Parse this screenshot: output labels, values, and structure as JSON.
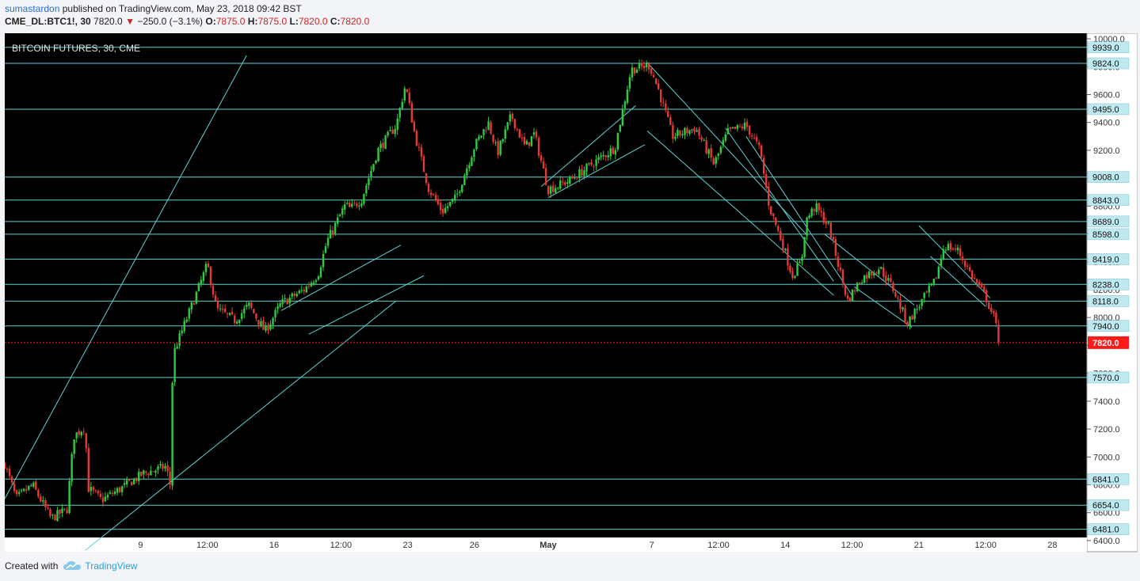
{
  "header": {
    "author": "sumastardon",
    "published_text": "published on TradingView.com, May 23, 2018 09:42 BST",
    "symbol": "CME_DL:BTC1!, 30",
    "last": "7820.0",
    "change": "−250.0 (−3.1%)",
    "open_label": "O:",
    "open": "7875.0",
    "high_label": "H:",
    "high": "7875.0",
    "low_label": "L:",
    "low": "7820.0",
    "close_label": "C:",
    "close": "7820.0"
  },
  "footer": {
    "created_with": "Created with",
    "brand": "TradingView"
  },
  "colors": {
    "background": "#000000",
    "levels": "#5fd3d3",
    "up": "#2ecc40",
    "down": "#e53935",
    "price_tag": "#ff1a1a",
    "level_tag": "#bfe9f0"
  },
  "chart_data": {
    "type": "candlestick",
    "title": "BITCOIN FUTURES, 30, CME",
    "ylim": [
      6320,
      10040
    ],
    "y_ticks": [
      6400,
      6600,
      6800,
      7000,
      7200,
      7400,
      7600,
      7800,
      8000,
      8200,
      8400,
      8600,
      8800,
      9000,
      9200,
      9400,
      9600,
      9800,
      10000
    ],
    "y_tick_labels": [
      "6400.0",
      "6600.0",
      "6800.0",
      "7000.0",
      "7200.0",
      "7400.0",
      "7600.0",
      "7800.0",
      "8000.0",
      "8200.0",
      "8400.0",
      "8600.0",
      "8800.0",
      "9000.0",
      "9200.0",
      "9400.0",
      "9600.0",
      "9800.0",
      "10000.0"
    ],
    "x_ticks": [
      {
        "label": "9",
        "t": 0.59
      },
      {
        "label": "12:00",
        "t": 0.88
      },
      {
        "label": "16",
        "t": 1.17
      },
      {
        "label": "12:00",
        "t": 1.46
      },
      {
        "label": "23",
        "t": 1.75
      },
      {
        "label": "26",
        "t": 2.04
      },
      {
        "label": "May",
        "t": 2.36
      },
      {
        "label": "7",
        "t": 2.81
      },
      {
        "label": "12:00",
        "t": 3.1
      },
      {
        "label": "14",
        "t": 3.39
      },
      {
        "label": "12:00",
        "t": 3.68
      },
      {
        "label": "21",
        "t": 3.97
      },
      {
        "label": "12:00",
        "t": 4.26
      },
      {
        "label": "28",
        "t": 4.55
      }
    ],
    "levels": [
      9939.0,
      9824.0,
      9495.0,
      9008.0,
      8843.0,
      8689.0,
      8598.0,
      8419.0,
      8238.0,
      8118.0,
      7940.0,
      7570.0,
      6841.0,
      6654.0,
      6481.0
    ],
    "level_labels": [
      "9939.0",
      "9824.0",
      "9495.0",
      "9008.0",
      "8843.0",
      "8689.0",
      "8598.0",
      "8419.0",
      "8238.0",
      "8118.0",
      "7940.0",
      "7570.0",
      "6841.0",
      "6654.0",
      "6481.0"
    ],
    "last_price": 7820.0,
    "last_price_label": "7820.0",
    "path": [
      [
        0.0,
        6950
      ],
      [
        0.05,
        6700
      ],
      [
        0.12,
        6800
      ],
      [
        0.2,
        6560
      ],
      [
        0.27,
        6620
      ],
      [
        0.3,
        7150
      ],
      [
        0.35,
        7220
      ],
      [
        0.36,
        6780
      ],
      [
        0.42,
        6690
      ],
      [
        0.52,
        6790
      ],
      [
        0.6,
        6880
      ],
      [
        0.7,
        6930
      ],
      [
        0.72,
        6790
      ],
      [
        0.73,
        7730
      ],
      [
        0.78,
        7950
      ],
      [
        0.82,
        8120
      ],
      [
        0.88,
        8380
      ],
      [
        0.92,
        8060
      ],
      [
        1.0,
        7980
      ],
      [
        1.06,
        8090
      ],
      [
        1.13,
        7900
      ],
      [
        1.2,
        8100
      ],
      [
        1.3,
        8200
      ],
      [
        1.36,
        8310
      ],
      [
        1.4,
        8550
      ],
      [
        1.48,
        8810
      ],
      [
        1.5,
        8780
      ],
      [
        1.55,
        8850
      ],
      [
        1.62,
        9200
      ],
      [
        1.7,
        9380
      ],
      [
        1.74,
        9670
      ],
      [
        1.78,
        9320
      ],
      [
        1.84,
        8930
      ],
      [
        1.9,
        8760
      ],
      [
        1.96,
        8860
      ],
      [
        2.04,
        9230
      ],
      [
        2.1,
        9400
      ],
      [
        2.14,
        9180
      ],
      [
        2.2,
        9450
      ],
      [
        2.26,
        9220
      ],
      [
        2.3,
        9320
      ],
      [
        2.36,
        8920
      ],
      [
        2.45,
        8980
      ],
      [
        2.55,
        9100
      ],
      [
        2.65,
        9220
      ],
      [
        2.72,
        9780
      ],
      [
        2.8,
        9810
      ],
      [
        2.84,
        9630
      ],
      [
        2.9,
        9300
      ],
      [
        3.0,
        9360
      ],
      [
        3.08,
        9100
      ],
      [
        3.14,
        9330
      ],
      [
        3.22,
        9380
      ],
      [
        3.28,
        9200
      ],
      [
        3.32,
        8800
      ],
      [
        3.38,
        8520
      ],
      [
        3.42,
        8300
      ],
      [
        3.46,
        8400
      ],
      [
        3.48,
        8700
      ],
      [
        3.52,
        8800
      ],
      [
        3.58,
        8650
      ],
      [
        3.62,
        8380
      ],
      [
        3.66,
        8120
      ],
      [
        3.72,
        8280
      ],
      [
        3.8,
        8360
      ],
      [
        3.86,
        8200
      ],
      [
        3.92,
        7960
      ],
      [
        3.96,
        8060
      ],
      [
        4.0,
        8160
      ],
      [
        4.04,
        8260
      ],
      [
        4.08,
        8520
      ],
      [
        4.14,
        8480
      ],
      [
        4.2,
        8300
      ],
      [
        4.26,
        8150
      ],
      [
        4.3,
        7980
      ],
      [
        4.32,
        7820
      ]
    ]
  }
}
